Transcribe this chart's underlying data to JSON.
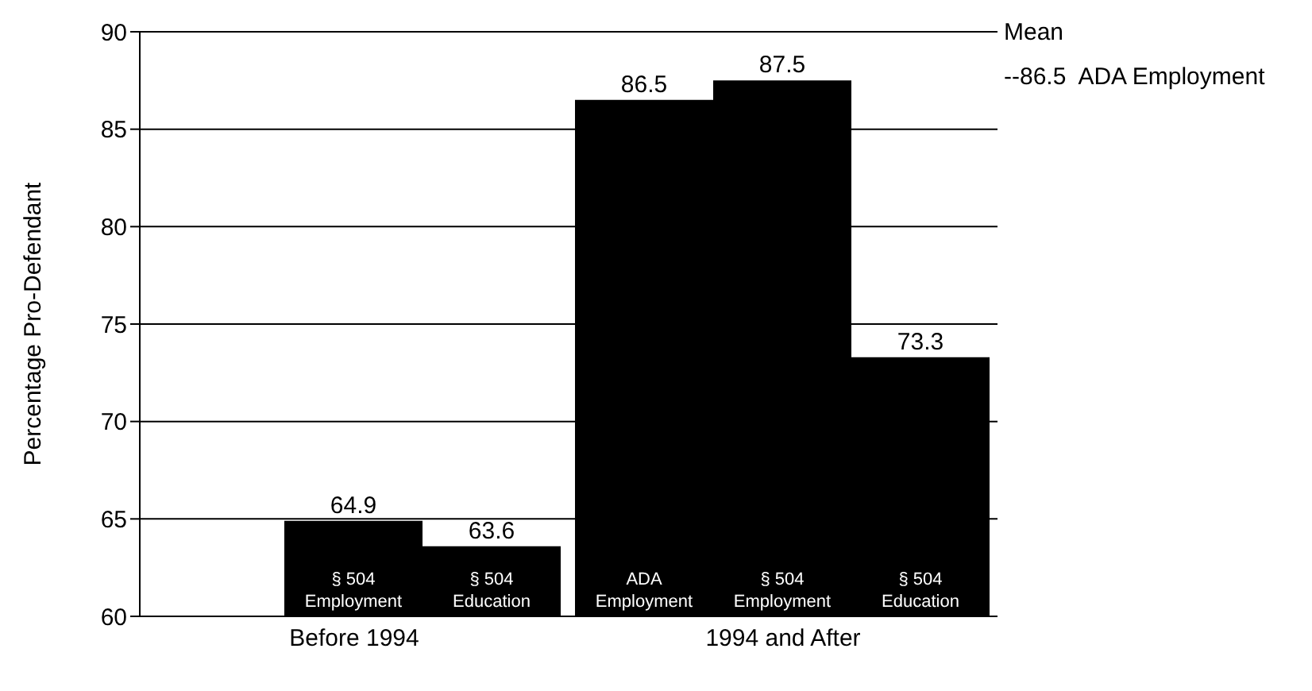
{
  "chart_data": {
    "type": "bar",
    "ylabel": "Percentage Pro-Defendant",
    "categories": [
      "Before 1994",
      "1994 and After"
    ],
    "series": [
      {
        "name": "ADA Employment",
        "color": "#000000",
        "values": [
          null,
          86.5
        ]
      },
      {
        "name": "§ 504 Employment",
        "color": "#000000",
        "values": [
          64.9,
          87.5
        ]
      },
      {
        "name": "§ 504 Education",
        "color": "#000000",
        "values": [
          63.6,
          73.3
        ]
      }
    ],
    "ylim": [
      60,
      90
    ],
    "yticks": [
      60,
      65,
      70,
      75,
      80,
      85,
      90
    ],
    "grid": "y",
    "legend": false,
    "data_labels": true,
    "annotations": [
      "Mean",
      "--86.5  ADA Employment"
    ]
  }
}
